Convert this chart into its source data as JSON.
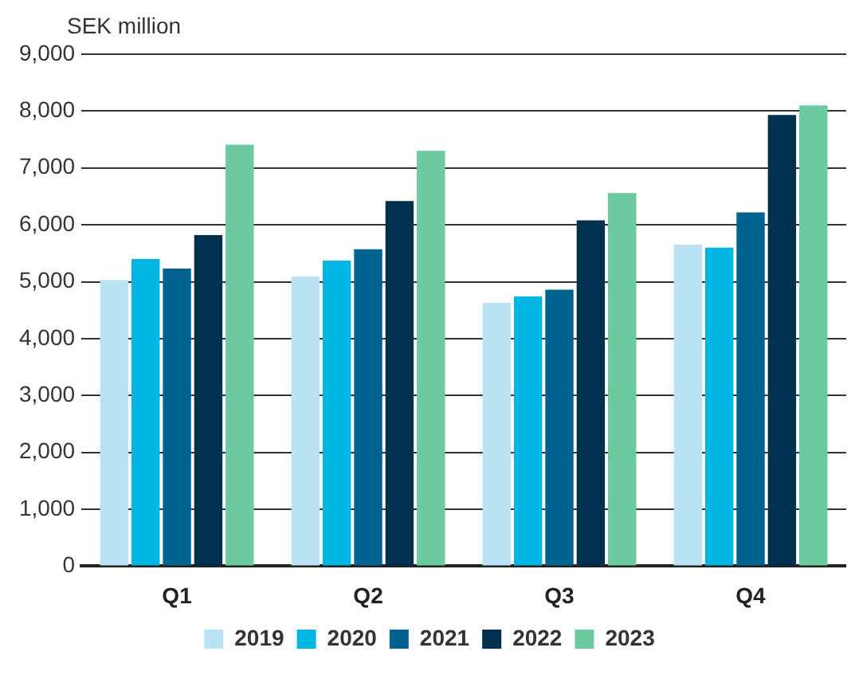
{
  "chart_data": {
    "type": "bar",
    "ylabel": "SEK million",
    "categories": [
      "Q1",
      "Q2",
      "Q3",
      "Q4"
    ],
    "series": [
      {
        "name": "2019",
        "color": "#b8e3f5",
        "values": [
          5030,
          5090,
          4630,
          5650
        ]
      },
      {
        "name": "2020",
        "color": "#00b5e2",
        "values": [
          5400,
          5370,
          4740,
          5600
        ]
      },
      {
        "name": "2021",
        "color": "#00628f",
        "values": [
          5230,
          5570,
          4860,
          6220
        ]
      },
      {
        "name": "2022",
        "color": "#00304f",
        "values": [
          5820,
          6420,
          6080,
          7930
        ]
      },
      {
        "name": "2023",
        "color": "#6cc9a0",
        "values": [
          7410,
          7300,
          6560,
          8100
        ]
      }
    ],
    "ylim": [
      0,
      9000
    ],
    "yticks": [
      {
        "value": 0,
        "label": "0"
      },
      {
        "value": 1000,
        "label": "1,000"
      },
      {
        "value": 2000,
        "label": "2,000"
      },
      {
        "value": 3000,
        "label": "3,000"
      },
      {
        "value": 4000,
        "label": "4,000"
      },
      {
        "value": 5000,
        "label": "5,000"
      },
      {
        "value": 6000,
        "label": "6,000"
      },
      {
        "value": 7000,
        "label": "7,000"
      },
      {
        "value": 8000,
        "label": "8,000"
      },
      {
        "value": 9000,
        "label": "9,000"
      }
    ],
    "grid": "y",
    "legend": "bottom"
  }
}
